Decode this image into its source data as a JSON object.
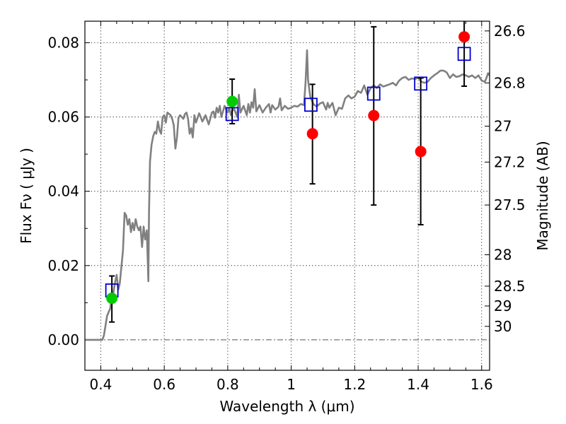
{
  "chart_data": {
    "type": "scatter",
    "xlabel": "Wavelength  λ (μm)",
    "ylabel": "Flux  Fν  ( μJy )",
    "ylabel_right": "Magnitude (AB)",
    "xlim": [
      0.35,
      1.625
    ],
    "ylim": [
      -0.0082,
      0.0858
    ],
    "x_ticks": [
      {
        "value": 0.4,
        "label": "0.4"
      },
      {
        "value": 0.6,
        "label": "0.6"
      },
      {
        "value": 0.8,
        "label": "0.8"
      },
      {
        "value": 1.0,
        "label": "1"
      },
      {
        "value": 1.2,
        "label": "1.2"
      },
      {
        "value": 1.4,
        "label": "1.4"
      },
      {
        "value": 1.6,
        "label": "1.6"
      }
    ],
    "y_ticks": [
      {
        "value": 0.0,
        "label": "0.00"
      },
      {
        "value": 0.02,
        "label": "0.02"
      },
      {
        "value": 0.04,
        "label": "0.04"
      },
      {
        "value": 0.06,
        "label": "0.06"
      },
      {
        "value": 0.08,
        "label": "0.08"
      }
    ],
    "y_right_ticks": [
      {
        "value": 26.6,
        "label": "26.6"
      },
      {
        "value": 26.8,
        "label": "26.8"
      },
      {
        "value": 27.0,
        "label": "27"
      },
      {
        "value": 27.2,
        "label": "27.2"
      },
      {
        "value": 27.5,
        "label": "27.5"
      },
      {
        "value": 28.0,
        "label": "28"
      },
      {
        "value": 28.5,
        "label": "28.5"
      },
      {
        "value": 29.0,
        "label": "29"
      },
      {
        "value": 30.0,
        "label": "30"
      }
    ],
    "grid": true,
    "series": [
      {
        "kind": "line",
        "color": "#808080",
        "points": [
          [
            0.35,
            0.0
          ],
          [
            0.4,
            0.0
          ],
          [
            0.405,
            0.0
          ],
          [
            0.41,
            0.0012
          ],
          [
            0.42,
            0.0065
          ],
          [
            0.43,
            0.0085
          ],
          [
            0.435,
            0.0125
          ],
          [
            0.44,
            0.0128
          ],
          [
            0.445,
            0.0155
          ],
          [
            0.45,
            0.0175
          ],
          [
            0.455,
            0.0135
          ],
          [
            0.46,
            0.0152
          ],
          [
            0.47,
            0.024
          ],
          [
            0.475,
            0.0342
          ],
          [
            0.48,
            0.0335
          ],
          [
            0.485,
            0.031
          ],
          [
            0.49,
            0.0325
          ],
          [
            0.495,
            0.029
          ],
          [
            0.5,
            0.0315
          ],
          [
            0.505,
            0.0295
          ],
          [
            0.51,
            0.0325
          ],
          [
            0.515,
            0.0305
          ],
          [
            0.52,
            0.0295
          ],
          [
            0.525,
            0.0305
          ],
          [
            0.53,
            0.025
          ],
          [
            0.535,
            0.0305
          ],
          [
            0.54,
            0.027
          ],
          [
            0.545,
            0.0295
          ],
          [
            0.55,
            0.0158
          ],
          [
            0.552,
            0.034
          ],
          [
            0.555,
            0.048
          ],
          [
            0.56,
            0.0525
          ],
          [
            0.565,
            0.0548
          ],
          [
            0.57,
            0.056
          ],
          [
            0.575,
            0.0555
          ],
          [
            0.58,
            0.0588
          ],
          [
            0.585,
            0.0565
          ],
          [
            0.59,
            0.0555
          ],
          [
            0.595,
            0.06
          ],
          [
            0.6,
            0.0605
          ],
          [
            0.605,
            0.0585
          ],
          [
            0.61,
            0.0612
          ],
          [
            0.62,
            0.0605
          ],
          [
            0.625,
            0.0595
          ],
          [
            0.63,
            0.0578
          ],
          [
            0.635,
            0.0515
          ],
          [
            0.64,
            0.0545
          ],
          [
            0.645,
            0.0598
          ],
          [
            0.65,
            0.0605
          ],
          [
            0.66,
            0.0595
          ],
          [
            0.665,
            0.0608
          ],
          [
            0.67,
            0.0612
          ],
          [
            0.675,
            0.0595
          ],
          [
            0.68,
            0.0555
          ],
          [
            0.685,
            0.057
          ],
          [
            0.69,
            0.0545
          ],
          [
            0.695,
            0.0605
          ],
          [
            0.7,
            0.0585
          ],
          [
            0.71,
            0.061
          ],
          [
            0.715,
            0.06
          ],
          [
            0.72,
            0.0588
          ],
          [
            0.725,
            0.0595
          ],
          [
            0.73,
            0.0605
          ],
          [
            0.74,
            0.058
          ],
          [
            0.75,
            0.0612
          ],
          [
            0.755,
            0.0615
          ],
          [
            0.76,
            0.0598
          ],
          [
            0.765,
            0.0625
          ],
          [
            0.77,
            0.0612
          ],
          [
            0.775,
            0.063
          ],
          [
            0.78,
            0.06
          ],
          [
            0.79,
            0.063
          ],
          [
            0.8,
            0.0612
          ],
          [
            0.805,
            0.0625
          ],
          [
            0.81,
            0.0605
          ],
          [
            0.815,
            0.0618
          ],
          [
            0.82,
            0.0622
          ],
          [
            0.83,
            0.06
          ],
          [
            0.835,
            0.066
          ],
          [
            0.84,
            0.0612
          ],
          [
            0.85,
            0.063
          ],
          [
            0.86,
            0.0605
          ],
          [
            0.865,
            0.0635
          ],
          [
            0.87,
            0.0612
          ],
          [
            0.875,
            0.064
          ],
          [
            0.88,
            0.0625
          ],
          [
            0.885,
            0.0675
          ],
          [
            0.89,
            0.0615
          ],
          [
            0.9,
            0.0632
          ],
          [
            0.91,
            0.0612
          ],
          [
            0.92,
            0.0625
          ],
          [
            0.93,
            0.0635
          ],
          [
            0.935,
            0.0612
          ],
          [
            0.94,
            0.0632
          ],
          [
            0.95,
            0.062
          ],
          [
            0.96,
            0.0628
          ],
          [
            0.965,
            0.065
          ],
          [
            0.97,
            0.0618
          ],
          [
            0.98,
            0.063
          ],
          [
            0.99,
            0.0622
          ],
          [
            1.0,
            0.0625
          ],
          [
            1.01,
            0.063
          ],
          [
            1.02,
            0.0628
          ],
          [
            1.03,
            0.0635
          ],
          [
            1.04,
            0.0632
          ],
          [
            1.045,
            0.069
          ],
          [
            1.05,
            0.078
          ],
          [
            1.053,
            0.07
          ],
          [
            1.06,
            0.0655
          ],
          [
            1.07,
            0.0635
          ],
          [
            1.08,
            0.0628
          ],
          [
            1.09,
            0.0636
          ],
          [
            1.1,
            0.064
          ],
          [
            1.11,
            0.062
          ],
          [
            1.115,
            0.0638
          ],
          [
            1.12,
            0.0625
          ],
          [
            1.13,
            0.0638
          ],
          [
            1.14,
            0.0605
          ],
          [
            1.15,
            0.0625
          ],
          [
            1.16,
            0.0622
          ],
          [
            1.17,
            0.065
          ],
          [
            1.18,
            0.0658
          ],
          [
            1.19,
            0.065
          ],
          [
            1.2,
            0.0655
          ],
          [
            1.21,
            0.067
          ],
          [
            1.22,
            0.0665
          ],
          [
            1.23,
            0.0685
          ],
          [
            1.24,
            0.066
          ],
          [
            1.25,
            0.0678
          ],
          [
            1.26,
            0.0685
          ],
          [
            1.27,
            0.0678
          ],
          [
            1.28,
            0.0688
          ],
          [
            1.29,
            0.0682
          ],
          [
            1.3,
            0.0685
          ],
          [
            1.31,
            0.0688
          ],
          [
            1.32,
            0.0692
          ],
          [
            1.33,
            0.0685
          ],
          [
            1.34,
            0.0698
          ],
          [
            1.35,
            0.0705
          ],
          [
            1.36,
            0.0708
          ],
          [
            1.37,
            0.07
          ],
          [
            1.38,
            0.0704
          ],
          [
            1.39,
            0.0702
          ],
          [
            1.4,
            0.0706
          ],
          [
            1.41,
            0.0695
          ],
          [
            1.42,
            0.0692
          ],
          [
            1.43,
            0.0695
          ],
          [
            1.44,
            0.0705
          ],
          [
            1.45,
            0.0712
          ],
          [
            1.46,
            0.0718
          ],
          [
            1.47,
            0.0725
          ],
          [
            1.48,
            0.0725
          ],
          [
            1.49,
            0.072
          ],
          [
            1.5,
            0.0705
          ],
          [
            1.51,
            0.0715
          ],
          [
            1.52,
            0.0708
          ],
          [
            1.53,
            0.071
          ],
          [
            1.54,
            0.0715
          ],
          [
            1.55,
            0.0712
          ],
          [
            1.56,
            0.0708
          ],
          [
            1.57,
            0.0712
          ],
          [
            1.58,
            0.0705
          ],
          [
            1.59,
            0.0712
          ],
          [
            1.6,
            0.0698
          ],
          [
            1.61,
            0.0695
          ],
          [
            1.615,
            0.0705
          ],
          [
            1.62,
            0.0718
          ],
          [
            1.625,
            0.0712
          ]
        ]
      },
      {
        "kind": "observed",
        "marker": "circle",
        "color": "#ff0000",
        "points": [
          {
            "x": 1.067,
            "y": 0.0555,
            "ylo": 0.042,
            "yhi": 0.0688
          },
          {
            "x": 1.26,
            "y": 0.0604,
            "ylo": 0.0363,
            "yhi": 0.0843
          },
          {
            "x": 1.408,
            "y": 0.0507,
            "ylo": 0.031,
            "yhi": 0.0705
          },
          {
            "x": 1.545,
            "y": 0.0816,
            "ylo": 0.0683,
            "yhi": 0.0868
          }
        ]
      },
      {
        "kind": "observed",
        "marker": "circle",
        "color": "#00cc00",
        "points": [
          {
            "x": 0.435,
            "y": 0.0112,
            "ylo": 0.0048,
            "yhi": 0.0172
          },
          {
            "x": 0.814,
            "y": 0.0642,
            "ylo": 0.0582,
            "yhi": 0.0702
          }
        ]
      },
      {
        "kind": "model",
        "marker": "square",
        "color": "#0000cc",
        "points": [
          {
            "x": 0.435,
            "y": 0.0133
          },
          {
            "x": 0.814,
            "y": 0.0608
          },
          {
            "x": 1.062,
            "y": 0.0633
          },
          {
            "x": 1.26,
            "y": 0.0663
          },
          {
            "x": 1.408,
            "y": 0.069
          },
          {
            "x": 1.545,
            "y": 0.077
          }
        ]
      }
    ]
  }
}
